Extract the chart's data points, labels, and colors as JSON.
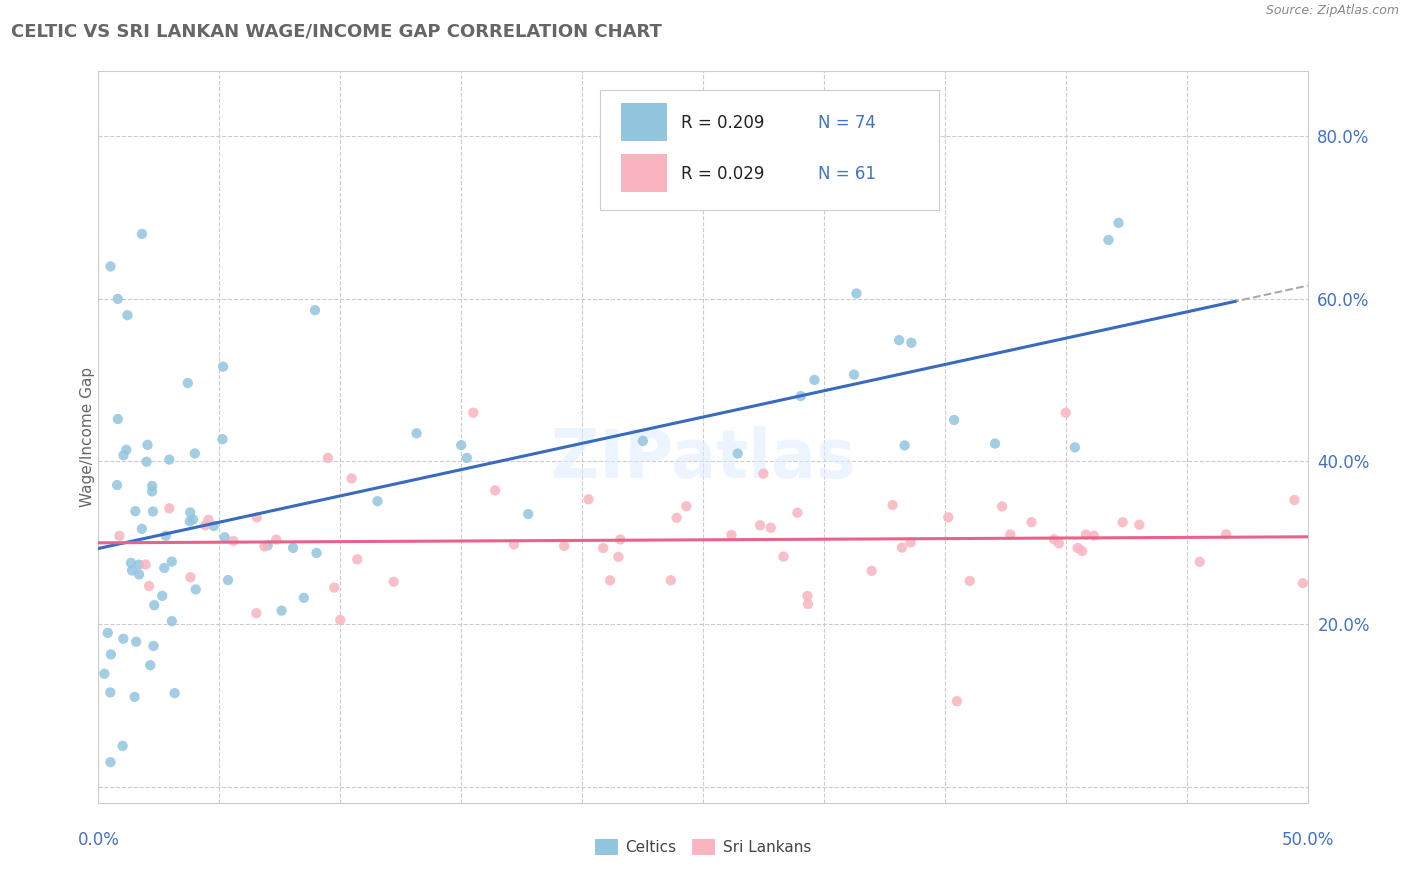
{
  "title": "CELTIC VS SRI LANKAN WAGE/INCOME GAP CORRELATION CHART",
  "source": "Source: ZipAtlas.com",
  "ylabel": "Wage/Income Gap",
  "xlim": [
    0.0,
    0.5
  ],
  "ylim": [
    -0.02,
    0.88
  ],
  "celtic_color": "#92c5de",
  "sri_lankan_color": "#f9b4c0",
  "trend_celtic_color": "#3a6bbf",
  "trend_sri_lankan_color": "#e8638a",
  "trend_dashed_color": "#aaaaaa",
  "background_color": "#ffffff",
  "grid_color": "#cccccc",
  "text_color": "#4472c4",
  "title_color": "#666666"
}
